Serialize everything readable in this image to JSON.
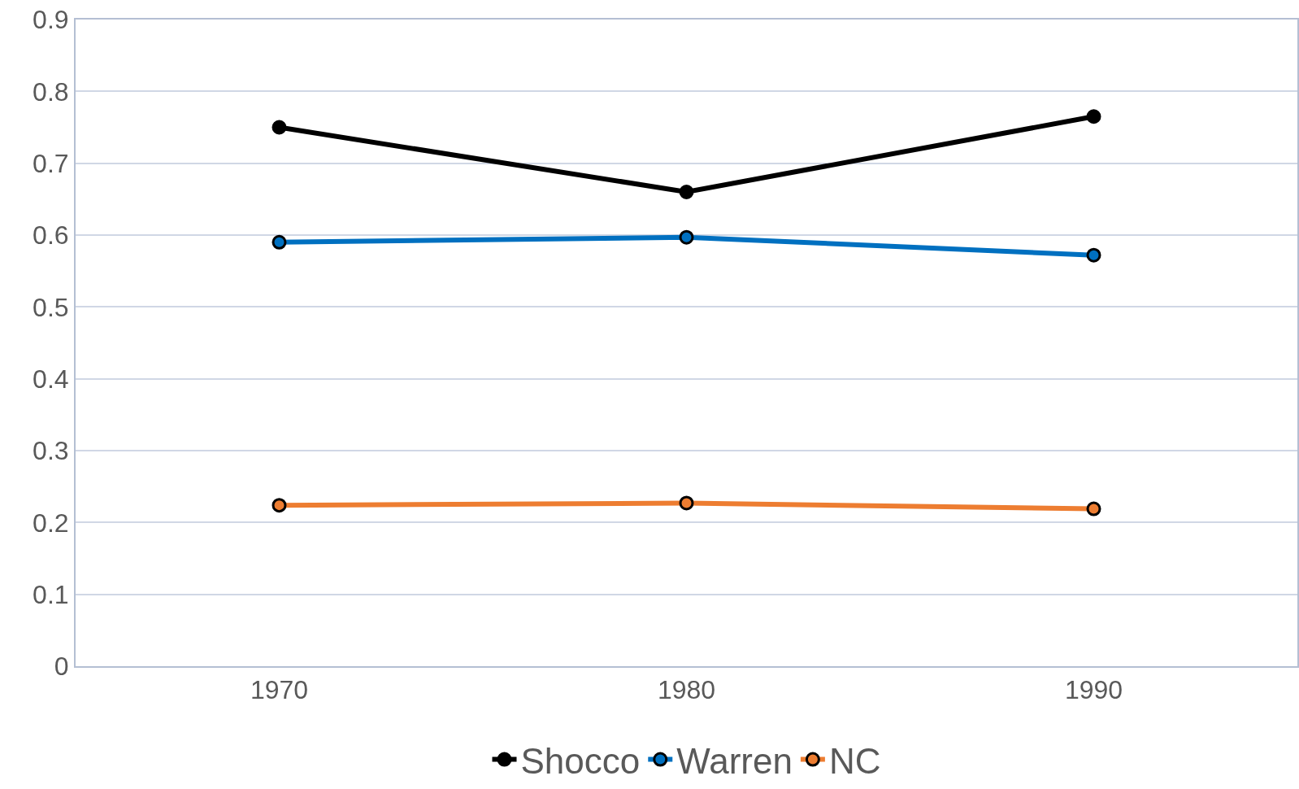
{
  "chart_data": {
    "type": "line",
    "categories": [
      "1970",
      "1980",
      "1990"
    ],
    "series": [
      {
        "name": "Shocco",
        "color": "#000000",
        "values": [
          0.75,
          0.66,
          0.765
        ]
      },
      {
        "name": "Warren",
        "color": "#0070c0",
        "values": [
          0.59,
          0.597,
          0.572
        ]
      },
      {
        "name": "NC",
        "color": "#ed7d31",
        "values": [
          0.224,
          0.227,
          0.219
        ]
      }
    ],
    "ylim": [
      0,
      0.9
    ],
    "yticks": [
      0,
      0.1,
      0.2,
      0.3,
      0.4,
      0.5,
      0.6,
      0.7,
      0.8,
      0.9
    ],
    "grid": "y",
    "legend": "bottom",
    "marker": "circle",
    "line_style": "solid"
  }
}
